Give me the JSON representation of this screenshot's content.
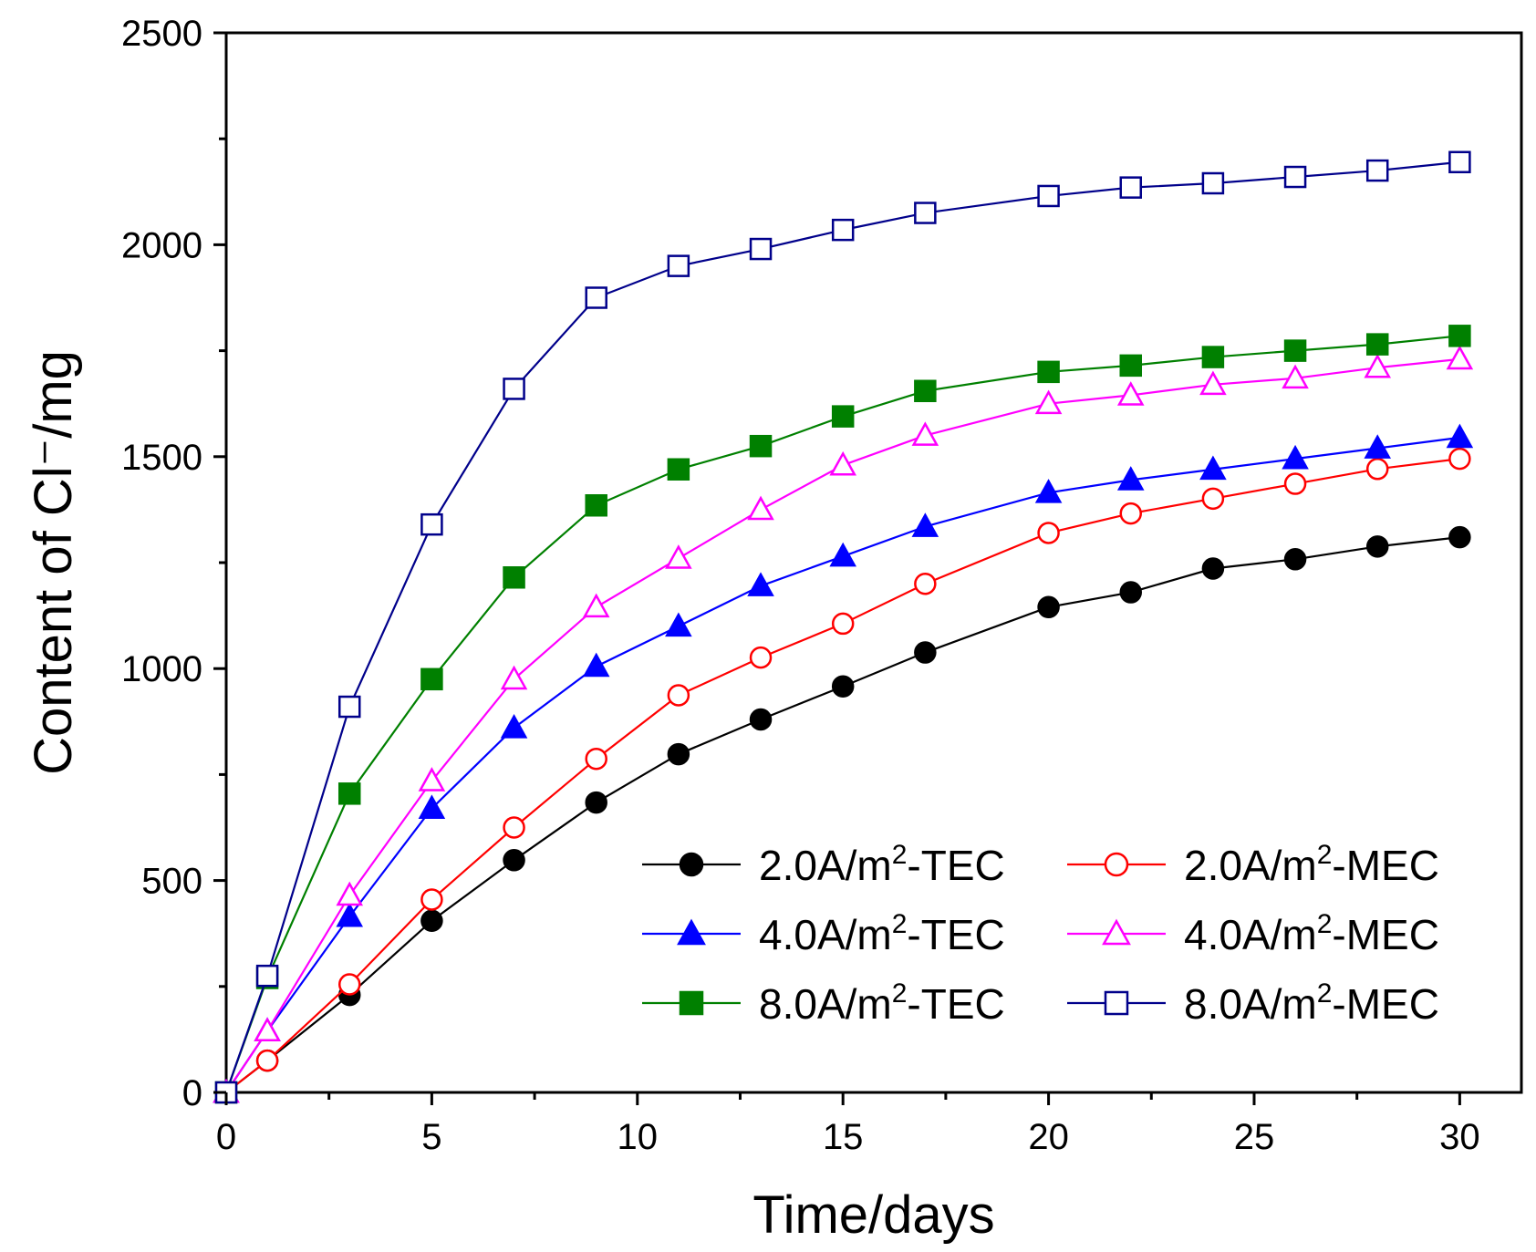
{
  "chart_data": {
    "type": "line",
    "title": "",
    "xlabel": "Time/days",
    "ylabel": "Content of Cl⁻/mg",
    "xlim": [
      0,
      31.5
    ],
    "ylim": [
      0,
      2500
    ],
    "xticks": [
      0,
      5,
      10,
      15,
      20,
      25,
      30
    ],
    "xtick_labels": [
      "0",
      "5",
      "10",
      "15",
      "20",
      "25",
      "30"
    ],
    "yticks": [
      0,
      500,
      1000,
      1500,
      2000,
      2500
    ],
    "ytick_labels": [
      "0",
      "500",
      "1000",
      "1500",
      "2000",
      "2500"
    ],
    "legend_position": "lower-right",
    "x": [
      0,
      1,
      3,
      5,
      7,
      9,
      11,
      13,
      15,
      17,
      20,
      22,
      24,
      26,
      28,
      30
    ],
    "series": [
      {
        "name": "2.0A/m2-TEC",
        "label_main": "2.0A/m",
        "label_sup": "2",
        "label_tail": "-TEC",
        "color": "#000000",
        "marker": "circle",
        "filled": true,
        "values": [
          0,
          75,
          230,
          405,
          548,
          684,
          798,
          880,
          958,
          1038,
          1145,
          1180,
          1236,
          1258,
          1288,
          1310
        ]
      },
      {
        "name": "2.0A/m2-MEC",
        "label_main": "2.0A/m",
        "label_sup": "2",
        "label_tail": "-MEC",
        "color": "#ff0000",
        "marker": "circle",
        "filled": false,
        "values": [
          0,
          75,
          255,
          455,
          625,
          787,
          937,
          1026,
          1106,
          1200,
          1320,
          1366,
          1401,
          1436,
          1471,
          1495
        ]
      },
      {
        "name": "4.0A/m2-TEC",
        "label_main": "4.0A/m",
        "label_sup": "2",
        "label_tail": "-TEC",
        "color": "#0000ff",
        "marker": "triangle",
        "filled": true,
        "values": [
          0,
          145,
          415,
          670,
          860,
          1005,
          1100,
          1195,
          1265,
          1335,
          1415,
          1445,
          1470,
          1495,
          1520,
          1545
        ]
      },
      {
        "name": "4.0A/m2-MEC",
        "label_main": "4.0A/m",
        "label_sup": "2",
        "label_tail": "-MEC",
        "color": "#ff00ff",
        "marker": "triangle",
        "filled": false,
        "values": [
          0,
          145,
          465,
          735,
          975,
          1145,
          1260,
          1375,
          1480,
          1550,
          1625,
          1645,
          1670,
          1685,
          1710,
          1730
        ]
      },
      {
        "name": "8.0A/m2-TEC",
        "label_main": "8.0A/m",
        "label_sup": "2",
        "label_tail": "-TEC",
        "color": "#008000",
        "marker": "square",
        "filled": true,
        "values": [
          0,
          270,
          705,
          975,
          1215,
          1385,
          1470,
          1525,
          1595,
          1655,
          1700,
          1715,
          1735,
          1750,
          1765,
          1785
        ]
      },
      {
        "name": "8.0A/m2-MEC",
        "label_main": "8.0A/m",
        "label_sup": "2",
        "label_tail": "-MEC",
        "color": "#00008b",
        "marker": "square",
        "filled": false,
        "values": [
          0,
          275,
          910,
          1340,
          1660,
          1875,
          1950,
          1990,
          2035,
          2075,
          2115,
          2135,
          2145,
          2160,
          2175,
          2195
        ]
      }
    ]
  }
}
